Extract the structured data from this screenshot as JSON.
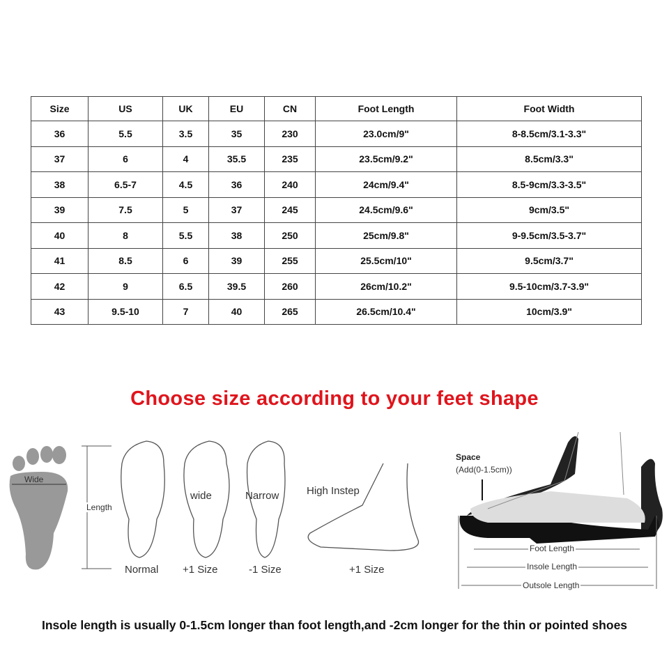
{
  "table": {
    "headers": [
      "Size",
      "US",
      "UK",
      "EU",
      "CN",
      "Foot Length",
      "Foot Width"
    ],
    "rows": [
      [
        "36",
        "5.5",
        "3.5",
        "35",
        "230",
        "23.0cm/9\"",
        "8-8.5cm/3.1-3.3\""
      ],
      [
        "37",
        "6",
        "4",
        "35.5",
        "235",
        "23.5cm/9.2\"",
        "8.5cm/3.3\""
      ],
      [
        "38",
        "6.5-7",
        "4.5",
        "36",
        "240",
        "24cm/9.4\"",
        "8.5-9cm/3.3-3.5\""
      ],
      [
        "39",
        "7.5",
        "5",
        "37",
        "245",
        "24.5cm/9.6\"",
        "9cm/3.5\""
      ],
      [
        "40",
        "8",
        "5.5",
        "38",
        "250",
        "25cm/9.8\"",
        "9-9.5cm/3.5-3.7\""
      ],
      [
        "41",
        "8.5",
        "6",
        "39",
        "255",
        "25.5cm/10\"",
        "9.5cm/3.7\""
      ],
      [
        "42",
        "9",
        "6.5",
        "39.5",
        "260",
        "26cm/10.2\"",
        "9.5-10cm/3.7-3.9\""
      ],
      [
        "43",
        "9.5-10",
        "7",
        "40",
        "265",
        "26.5cm/10.4\"",
        "10cm/3.9\""
      ]
    ]
  },
  "title": "Choose size according to your feet shape",
  "title_color": "#e0141c",
  "diagram": {
    "wide": "Wide",
    "length": "Length",
    "feet": [
      {
        "label": "Normal"
      },
      {
        "label": "+1 Size",
        "mark": "wide"
      },
      {
        "label": "-1 Size",
        "mark": "Narrow"
      },
      {
        "label": "+1 Size",
        "mark": "High Instep"
      }
    ],
    "shoe": {
      "space": "Space",
      "space_note": "(Add(0-1.5cm))",
      "foot_length": "Foot Length",
      "insole_length": "Insole Length",
      "outsole_length": "Outsole Length"
    }
  },
  "footnote": "Insole length is usually 0-1.5cm longer than foot length,and -2cm longer for the thin or pointed shoes"
}
